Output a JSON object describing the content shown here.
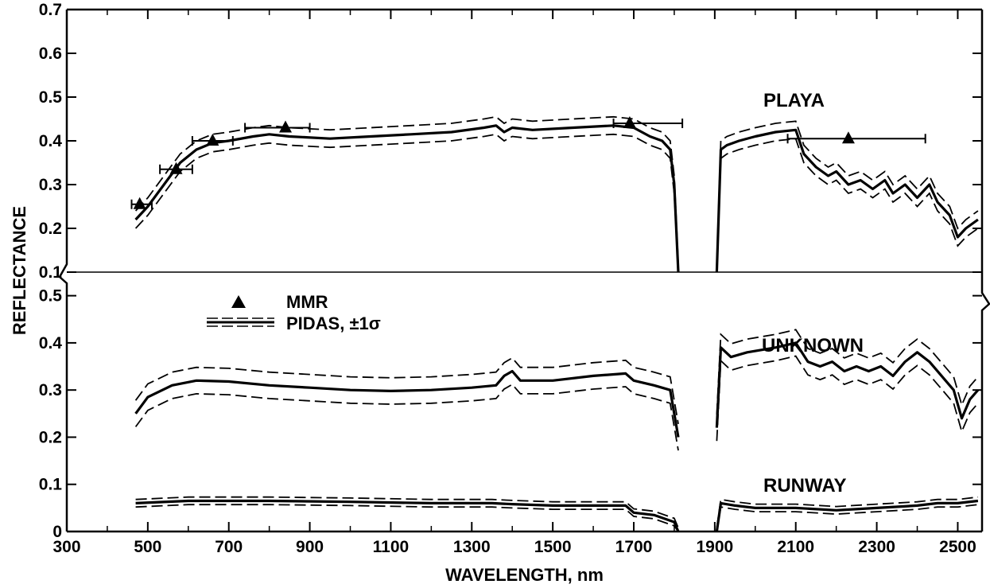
{
  "chart_data": {
    "type": "line",
    "xlabel": "WAVELENGTH, nm",
    "ylabel": "REFLECTANCE",
    "xlim": [
      400,
      2550
    ],
    "x_ticks": [
      "300",
      "500",
      "700",
      "900",
      "1100",
      "1300",
      "1500",
      "1700",
      "1900",
      "2100",
      "2300",
      "2500"
    ],
    "panels": [
      {
        "name": "upper",
        "ylim": [
          0.1,
          0.7
        ],
        "y_ticks": [
          "0.7",
          "0.6",
          "0.5",
          "0.4",
          "0.3",
          "0.2",
          "0.1"
        ],
        "series": [
          {
            "name": "PLAYA",
            "segments": [
              {
                "x": [
                  470,
                  500,
                  540,
                  580,
                  620,
                  660,
                  700,
                  760,
                  800,
                  850,
                  950,
                  1050,
                  1150,
                  1250,
                  1330,
                  1360,
                  1380,
                  1400,
                  1450,
                  1550,
                  1650,
                  1700,
                  1740,
                  1770,
                  1790,
                  1800,
                  1810
                ],
                "y": [
                  0.22,
                  0.25,
                  0.3,
                  0.35,
                  0.38,
                  0.395,
                  0.4,
                  0.41,
                  0.415,
                  0.41,
                  0.405,
                  0.41,
                  0.415,
                  0.42,
                  0.43,
                  0.435,
                  0.42,
                  0.43,
                  0.425,
                  0.43,
                  0.435,
                  0.43,
                  0.41,
                  0.4,
                  0.38,
                  0.3,
                  0.1
                ]
              },
              {
                "x": [
                  1905,
                  1915,
                  1930,
                  1960,
                  2000,
                  2050,
                  2100,
                  2120,
                  2150,
                  2180,
                  2200,
                  2230,
                  2260,
                  2290,
                  2320,
                  2340,
                  2370,
                  2400,
                  2430,
                  2450,
                  2480,
                  2500,
                  2520,
                  2550
                ],
                "y": [
                  0.1,
                  0.38,
                  0.39,
                  0.4,
                  0.41,
                  0.42,
                  0.425,
                  0.37,
                  0.34,
                  0.32,
                  0.33,
                  0.3,
                  0.31,
                  0.29,
                  0.31,
                  0.28,
                  0.3,
                  0.27,
                  0.3,
                  0.26,
                  0.23,
                  0.18,
                  0.2,
                  0.22
                ]
              }
            ]
          }
        ],
        "mmr": {
          "x": [
            480,
            570,
            660,
            840,
            1690,
            2230
          ],
          "y": [
            0.255,
            0.335,
            0.4,
            0.43,
            0.44,
            0.405
          ],
          "x_err_low": [
            460,
            530,
            610,
            740,
            1650,
            2080
          ],
          "x_err_high": [
            510,
            610,
            710,
            900,
            1820,
            2420
          ]
        }
      },
      {
        "name": "lower",
        "ylim": [
          0,
          0.55
        ],
        "y_ticks": [
          "0.5",
          "0.4",
          "0.3",
          "0.2",
          "0.1",
          "0"
        ],
        "series": [
          {
            "name": "UNKNOWN",
            "segments": [
              {
                "x": [
                  470,
                  500,
                  560,
                  620,
                  700,
                  800,
                  900,
                  1000,
                  1100,
                  1200,
                  1300,
                  1360,
                  1380,
                  1400,
                  1420,
                  1500,
                  1600,
                  1680,
                  1700,
                  1750,
                  1790,
                  1800,
                  1810
                ],
                "y": [
                  0.25,
                  0.285,
                  0.31,
                  0.32,
                  0.318,
                  0.31,
                  0.305,
                  0.3,
                  0.298,
                  0.3,
                  0.305,
                  0.31,
                  0.33,
                  0.34,
                  0.32,
                  0.32,
                  0.33,
                  0.335,
                  0.32,
                  0.31,
                  0.3,
                  0.25,
                  0.2
                ]
              },
              {
                "x": [
                  1905,
                  1915,
                  1940,
                  1980,
                  2050,
                  2100,
                  2130,
                  2160,
                  2190,
                  2220,
                  2250,
                  2280,
                  2310,
                  2340,
                  2370,
                  2400,
                  2430,
                  2460,
                  2490,
                  2510,
                  2530,
                  2550
                ],
                "y": [
                  0.22,
                  0.39,
                  0.37,
                  0.38,
                  0.39,
                  0.4,
                  0.36,
                  0.35,
                  0.36,
                  0.34,
                  0.35,
                  0.34,
                  0.35,
                  0.33,
                  0.36,
                  0.38,
                  0.36,
                  0.33,
                  0.3,
                  0.24,
                  0.28,
                  0.3
                ]
              }
            ]
          },
          {
            "name": "RUNWAY",
            "segments": [
              {
                "x": [
                  470,
                  600,
                  800,
                  1000,
                  1200,
                  1350,
                  1400,
                  1500,
                  1600,
                  1680,
                  1700,
                  1750,
                  1800,
                  1810
                ],
                "y": [
                  0.06,
                  0.065,
                  0.065,
                  0.063,
                  0.06,
                  0.06,
                  0.058,
                  0.055,
                  0.055,
                  0.055,
                  0.04,
                  0.035,
                  0.02,
                  0.0
                ]
              },
              {
                "x": [
                  1905,
                  1915,
                  1950,
                  2000,
                  2100,
                  2200,
                  2300,
                  2400,
                  2450,
                  2500,
                  2550
                ],
                "y": [
                  0.0,
                  0.06,
                  0.055,
                  0.05,
                  0.05,
                  0.045,
                  0.05,
                  0.055,
                  0.06,
                  0.06,
                  0.065
                ]
              }
            ]
          }
        ]
      }
    ],
    "legend": {
      "entries": [
        "MMR",
        "PIDAS, ±1σ"
      ],
      "placement": "lower-panel upper-left"
    }
  }
}
